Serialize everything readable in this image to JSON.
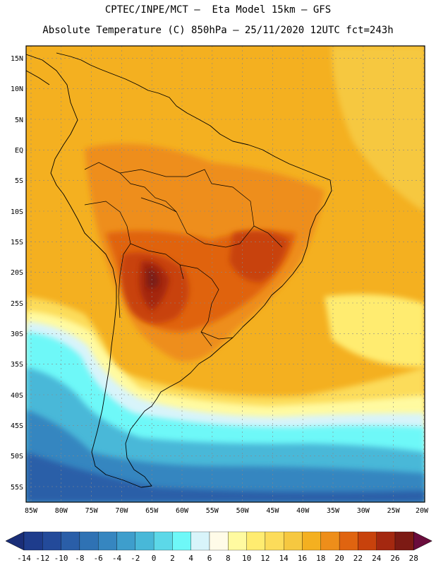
{
  "title_line1": "CPTEC/INPE/MCT –  Eta Model 15km – GFS",
  "title_line2": "Absolute Temperature (C) 850hPa – 25/11/2020 12UTC fct=243h",
  "lat_labels": [
    "15N",
    "10N",
    "5N",
    "EQ",
    "5S",
    "10S",
    "15S",
    "20S",
    "25S",
    "30S",
    "35S",
    "40S",
    "45S",
    "50S",
    "55S"
  ],
  "lon_labels": [
    "85W",
    "80W",
    "75W",
    "70W",
    "65W",
    "60W",
    "55W",
    "50W",
    "45W",
    "40W",
    "35W",
    "30W",
    "25W",
    "20W"
  ],
  "colorbar": {
    "labels": [
      "-14",
      "-12",
      "-10",
      "-8",
      "-6",
      "-4",
      "-2",
      "0",
      "2",
      "4",
      "6",
      "8",
      "10",
      "12",
      "14",
      "16",
      "18",
      "20",
      "22",
      "24",
      "26",
      "28"
    ],
    "colors": [
      "#1e3c8c",
      "#234a9a",
      "#2a5ea8",
      "#2f72b4",
      "#3686c0",
      "#3e9ecc",
      "#48b8d8",
      "#5cd8e8",
      "#6ef8f8",
      "#d8f4fa",
      "#fffbe8",
      "#fffaa0",
      "#ffec70",
      "#fcdc5a",
      "#f6c840",
      "#f4b020",
      "#ee8e1a",
      "#e06410",
      "#c8420c",
      "#a42810",
      "#7c1a14"
    ],
    "low_color": "#1a2e78",
    "high_color": "#6a0c3c"
  }
}
